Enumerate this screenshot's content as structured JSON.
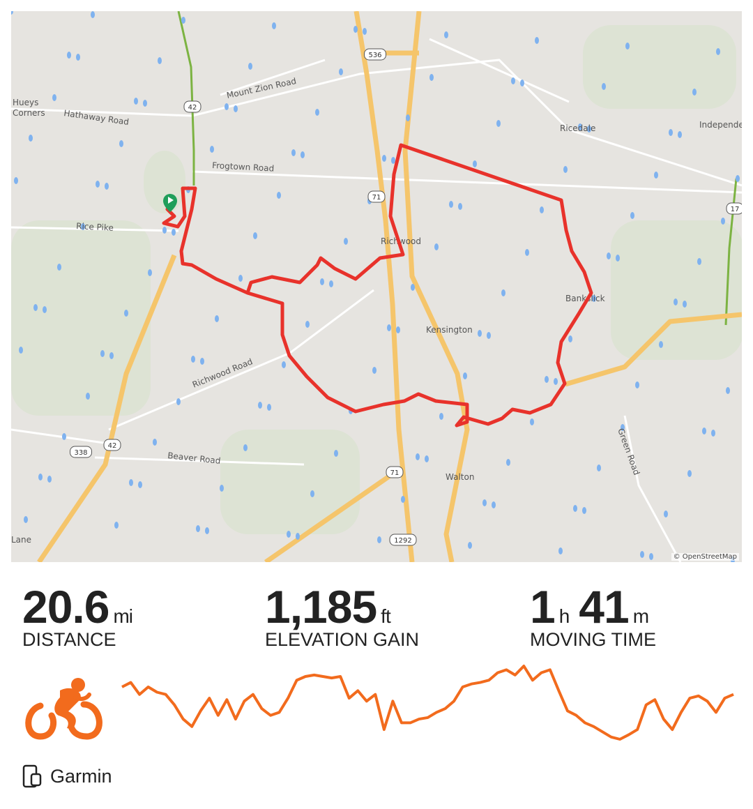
{
  "map": {
    "attribution": "© OpenStreetMap",
    "labels": [
      {
        "text": "Mount Zion Road"
      },
      {
        "text": "Hathaway Road"
      },
      {
        "text": "Hueys"
      },
      {
        "text": "Corners"
      },
      {
        "text": "Frogtown Road"
      },
      {
        "text": "Rice Pike"
      },
      {
        "text": "Richwood"
      },
      {
        "text": "Ricedale"
      },
      {
        "text": "Independe"
      },
      {
        "text": "Bankslick"
      },
      {
        "text": "Kensington"
      },
      {
        "text": "Richwood Road"
      },
      {
        "text": "Beaver Road"
      },
      {
        "text": "Walton"
      },
      {
        "text": "Green Road"
      },
      {
        "text": "Lane"
      }
    ],
    "shields": [
      "536",
      "42",
      "71",
      "17",
      "338",
      "42",
      "71",
      "1292"
    ],
    "route_color": "#e8322b",
    "start_marker_color": "#1f9e5a"
  },
  "stats": [
    {
      "value": "20.6",
      "unit": "mi",
      "label": "DISTANCE"
    },
    {
      "value": "1,185",
      "unit": "ft",
      "label": "ELEVATION GAIN"
    },
    {
      "value": "1",
      "unit": "h",
      "value2": "41",
      "unit2": "m",
      "label": "MOVING TIME"
    }
  ],
  "activity": {
    "icon": "cycling-icon",
    "accent": "#f26b1d"
  },
  "elevation_profile": [
    67,
    73,
    57,
    67,
    60,
    57,
    43,
    24,
    14,
    35,
    52,
    29,
    50,
    24,
    48,
    57,
    38,
    29,
    33,
    52,
    76,
    81,
    83,
    81,
    79,
    81,
    52,
    62,
    48,
    57,
    10,
    48,
    19,
    19,
    24,
    26,
    33,
    38,
    48,
    67,
    71,
    73,
    76,
    86,
    90,
    83,
    95,
    76,
    86,
    90,
    62,
    35,
    29,
    19,
    14,
    7,
    0,
    -3,
    3,
    10,
    43,
    50,
    24,
    10,
    33,
    52,
    55,
    48,
    33,
    52,
    57
  ],
  "source": {
    "icon": "device-icon",
    "label": "Garmin"
  }
}
